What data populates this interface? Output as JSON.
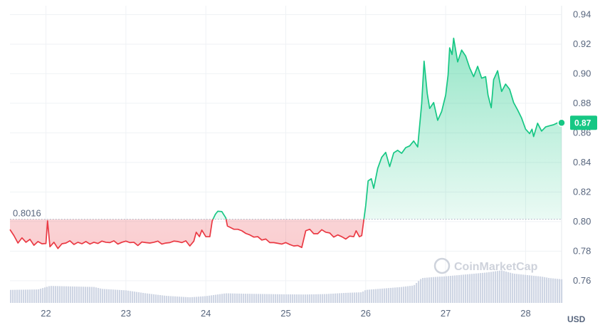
{
  "chart_data": {
    "type": "line",
    "x_unit": "day",
    "y_unit": "USD",
    "xlim": [
      21.55,
      28.45
    ],
    "ylim": [
      0.745,
      0.946
    ],
    "x_ticks": [
      {
        "value": 22,
        "label": "22"
      },
      {
        "value": 23,
        "label": "23"
      },
      {
        "value": 24,
        "label": "24"
      },
      {
        "value": 25,
        "label": "25"
      },
      {
        "value": 26,
        "label": "26"
      },
      {
        "value": 27,
        "label": "27"
      },
      {
        "value": 28,
        "label": "28"
      }
    ],
    "y_ticks": [
      {
        "value": 0.76,
        "label": "0.76"
      },
      {
        "value": 0.78,
        "label": "0.78"
      },
      {
        "value": 0.8,
        "label": "0.80"
      },
      {
        "value": 0.82,
        "label": "0.82"
      },
      {
        "value": 0.84,
        "label": "0.84"
      },
      {
        "value": 0.86,
        "label": "0.86"
      },
      {
        "value": 0.88,
        "label": "0.88"
      },
      {
        "value": 0.9,
        "label": "0.90"
      },
      {
        "value": 0.92,
        "label": "0.92"
      },
      {
        "value": 0.94,
        "label": "0.94"
      }
    ],
    "reference": {
      "value": 0.8016,
      "label": "0.8016"
    },
    "last_price": {
      "value": 0.8668,
      "label": "0.87"
    },
    "price_series": {
      "x": [
        21.55,
        21.6,
        21.65,
        21.7,
        21.75,
        21.8,
        21.85,
        21.9,
        21.95,
        22.0,
        22.02,
        22.05,
        22.1,
        22.15,
        22.2,
        22.25,
        22.3,
        22.35,
        22.4,
        22.45,
        22.5,
        22.55,
        22.6,
        22.65,
        22.7,
        22.75,
        22.8,
        22.85,
        22.9,
        22.95,
        23.0,
        23.05,
        23.1,
        23.15,
        23.2,
        23.25,
        23.3,
        23.35,
        23.4,
        23.45,
        23.5,
        23.55,
        23.6,
        23.65,
        23.7,
        23.75,
        23.8,
        23.85,
        23.88,
        23.92,
        23.95,
        24.0,
        24.05,
        24.08,
        24.12,
        24.15,
        24.2,
        24.25,
        24.27,
        24.3,
        24.35,
        24.4,
        24.45,
        24.5,
        24.55,
        24.6,
        24.65,
        24.7,
        24.75,
        24.8,
        24.85,
        24.9,
        24.95,
        25.0,
        25.05,
        25.1,
        25.15,
        25.2,
        25.25,
        25.3,
        25.35,
        25.4,
        25.45,
        25.5,
        25.55,
        25.6,
        25.65,
        25.7,
        25.75,
        25.8,
        25.85,
        25.88,
        25.92,
        25.95,
        26.0,
        26.03,
        26.07,
        26.1,
        26.15,
        26.2,
        26.25,
        26.3,
        26.35,
        26.4,
        26.45,
        26.5,
        26.55,
        26.6,
        26.65,
        26.7,
        26.73,
        26.77,
        26.8,
        26.85,
        26.9,
        26.95,
        27.0,
        27.03,
        27.05,
        27.08,
        27.1,
        27.15,
        27.2,
        27.25,
        27.3,
        27.35,
        27.4,
        27.45,
        27.5,
        27.53,
        27.57,
        27.6,
        27.65,
        27.7,
        27.75,
        27.8,
        27.85,
        27.9,
        27.95,
        28.0,
        28.05,
        28.08,
        28.1,
        28.15,
        28.2,
        28.25,
        28.3,
        28.35,
        28.4,
        28.45
      ],
      "y": [
        0.7946,
        0.7905,
        0.7855,
        0.789,
        0.786,
        0.788,
        0.784,
        0.7865,
        0.785,
        0.7852,
        0.8005,
        0.783,
        0.786,
        0.7818,
        0.785,
        0.7855,
        0.787,
        0.7845,
        0.786,
        0.785,
        0.7865,
        0.7848,
        0.786,
        0.7852,
        0.7868,
        0.786,
        0.7858,
        0.787,
        0.7848,
        0.786,
        0.7868,
        0.7858,
        0.786,
        0.7838,
        0.7862,
        0.7858,
        0.7855,
        0.786,
        0.7868,
        0.7848,
        0.7855,
        0.7858,
        0.7868,
        0.7865,
        0.7858,
        0.787,
        0.7835,
        0.7868,
        0.7928,
        0.7898,
        0.7942,
        0.7898,
        0.7898,
        0.8005,
        0.805,
        0.807,
        0.8068,
        0.8025,
        0.797,
        0.7962,
        0.7948,
        0.7948,
        0.7938,
        0.792,
        0.791,
        0.7895,
        0.7898,
        0.7875,
        0.7882,
        0.7858,
        0.7858,
        0.7853,
        0.7848,
        0.7858,
        0.7845,
        0.7835,
        0.7838,
        0.7825,
        0.7938,
        0.7948,
        0.7918,
        0.7918,
        0.7945,
        0.7928,
        0.7923,
        0.7895,
        0.791,
        0.7898,
        0.7882,
        0.7902,
        0.7898,
        0.7938,
        0.7898,
        0.7905,
        0.8108,
        0.8275,
        0.829,
        0.8225,
        0.836,
        0.8435,
        0.8468,
        0.8372,
        0.8465,
        0.8482,
        0.8462,
        0.85,
        0.8512,
        0.8545,
        0.8505,
        0.8798,
        0.9085,
        0.8865,
        0.8765,
        0.8805,
        0.8685,
        0.8745,
        0.8855,
        0.899,
        0.9175,
        0.913,
        0.924,
        0.908,
        0.916,
        0.912,
        0.904,
        0.898,
        0.905,
        0.897,
        0.898,
        0.8855,
        0.877,
        0.896,
        0.902,
        0.888,
        0.893,
        0.8895,
        0.8805,
        0.8755,
        0.87,
        0.8625,
        0.8595,
        0.8625,
        0.8575,
        0.8665,
        0.8612,
        0.864,
        0.8648,
        0.8655,
        0.8668,
        0.8668
      ]
    },
    "volume_series": {
      "x": [
        21.55,
        21.9,
        22.05,
        22.2,
        22.6,
        22.7,
        23.0,
        23.25,
        23.5,
        23.8,
        24.0,
        24.25,
        24.5,
        24.75,
        25.0,
        25.25,
        25.5,
        25.75,
        25.95,
        26.0,
        26.3,
        26.45,
        26.6,
        26.7,
        26.85,
        27.0,
        27.3,
        27.5,
        27.7,
        27.85,
        28.2,
        28.3,
        28.45
      ],
      "y": [
        0.7538,
        0.7541,
        0.7565,
        0.7563,
        0.7558,
        0.7545,
        0.7535,
        0.7515,
        0.7498,
        0.7488,
        0.7496,
        0.7515,
        0.7512,
        0.751,
        0.7508,
        0.7507,
        0.751,
        0.7518,
        0.7522,
        0.7538,
        0.7551,
        0.7558,
        0.7568,
        0.7618,
        0.7625,
        0.763,
        0.7645,
        0.7655,
        0.767,
        0.7648,
        0.7628,
        0.7618,
        0.761
      ]
    }
  },
  "watermark": "CoinMarketCap"
}
